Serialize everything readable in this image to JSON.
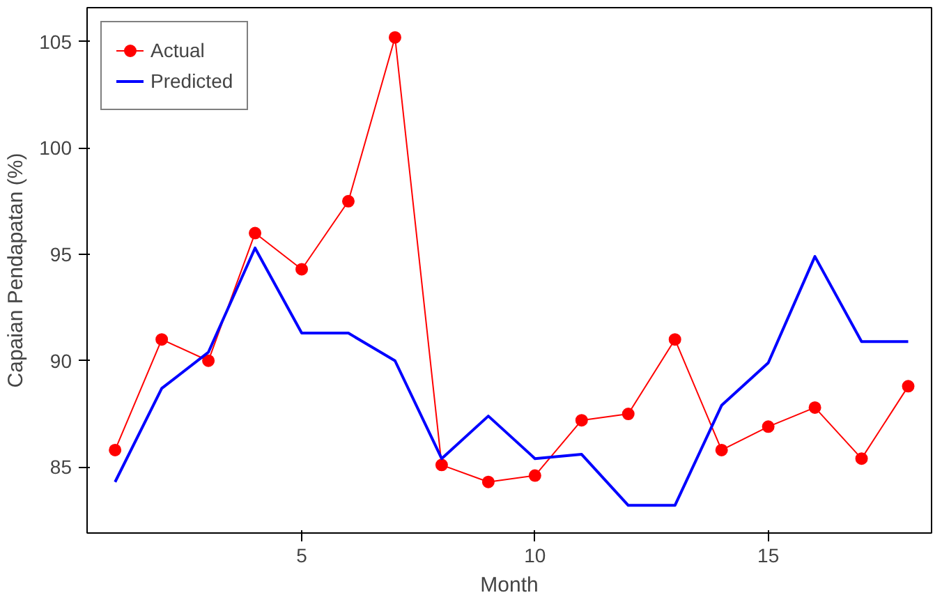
{
  "chart_data": {
    "type": "line",
    "xlabel": "Month",
    "ylabel": "Capaian Pendapatan (%)",
    "x": [
      1,
      2,
      3,
      4,
      5,
      6,
      7,
      8,
      9,
      10,
      11,
      12,
      13,
      14,
      15,
      16,
      17,
      18
    ],
    "xlim": [
      0.4,
      18.5
    ],
    "xticks": [
      5,
      10,
      15
    ],
    "ylim": [
      81.9,
      106.6
    ],
    "yticks": [
      85,
      90,
      95,
      100,
      105
    ],
    "grid": false,
    "legend": "top left",
    "series": [
      {
        "name": "Actual",
        "color": "#ff0000",
        "marker": "circle",
        "values": [
          85.8,
          91.0,
          90.0,
          96.0,
          94.3,
          97.5,
          105.2,
          85.1,
          84.3,
          84.6,
          87.2,
          87.5,
          91.0,
          85.8,
          86.9,
          87.8,
          85.4,
          88.8
        ]
      },
      {
        "name": "Predicted",
        "color": "#0000ff",
        "marker": "none",
        "values": [
          84.3,
          88.7,
          90.4,
          95.3,
          91.3,
          91.3,
          90.0,
          85.4,
          87.4,
          85.4,
          85.6,
          83.2,
          83.2,
          87.9,
          89.9,
          94.9,
          90.9,
          90.9
        ]
      }
    ]
  }
}
